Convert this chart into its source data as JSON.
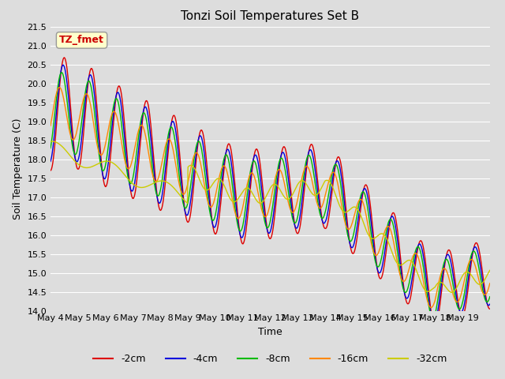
{
  "title": "Tonzi Soil Temperatures Set B",
  "xlabel": "Time",
  "ylabel": "Soil Temperature (C)",
  "ylim": [
    14.0,
    21.5
  ],
  "annotation_text": "TZ_fmet",
  "annotation_bg": "#FFFFCC",
  "annotation_border": "#999999",
  "annotation_text_color": "#CC0000",
  "plot_bg": "#DDDDDD",
  "grid_color": "#FFFFFF",
  "series_colors": [
    "#DD0000",
    "#0000DD",
    "#00BB00",
    "#FF8800",
    "#CCCC00"
  ],
  "series_labels": [
    "-2cm",
    "-4cm",
    "-8cm",
    "-16cm",
    "-32cm"
  ],
  "tick_label_size": 8,
  "title_fontsize": 11,
  "yticks": [
    14.0,
    14.5,
    15.0,
    15.5,
    16.0,
    16.5,
    17.0,
    17.5,
    18.0,
    18.5,
    19.0,
    19.5,
    20.0,
    20.5,
    21.0,
    21.5
  ],
  "days": [
    "May 4",
    "May 5",
    "May 6",
    "May 7",
    "May 8",
    "May 9",
    "May 10",
    "May 11",
    "May 12",
    "May 13",
    "May 14",
    "May 15",
    "May 16",
    "May 17",
    "May 18",
    "May 19"
  ]
}
